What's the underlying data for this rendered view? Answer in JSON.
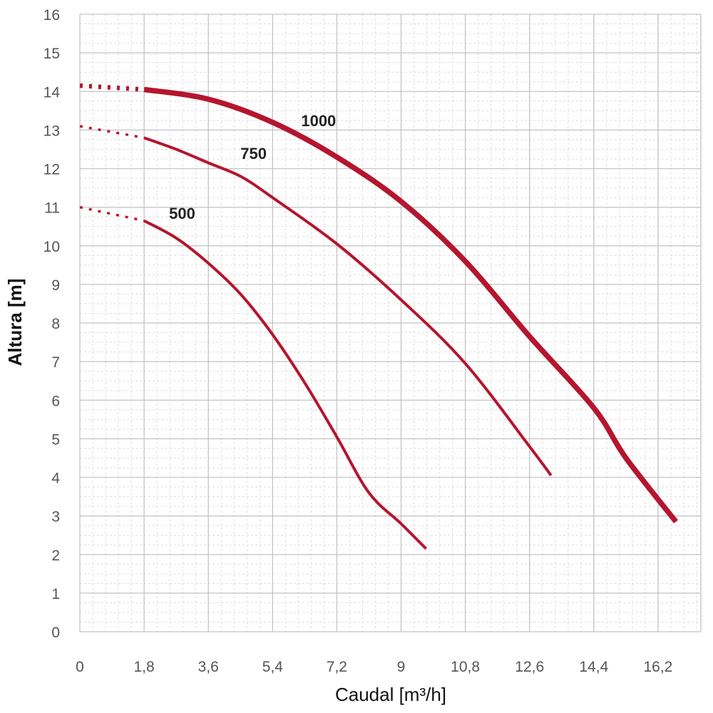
{
  "chart_data": {
    "type": "line",
    "title": "",
    "xlabel": "Caudal [m³/h]",
    "ylabel": "Altura [m]",
    "xlim": [
      0,
      17.4
    ],
    "ylim": [
      0,
      16
    ],
    "x_ticks": [
      "0",
      "1,8",
      "3,6",
      "5,4",
      "7,2",
      "9",
      "10,8",
      "12,6",
      "14,4",
      "16,2"
    ],
    "y_ticks": [
      "0",
      "1",
      "2",
      "3",
      "4",
      "5",
      "6",
      "7",
      "8",
      "9",
      "10",
      "11",
      "12",
      "13",
      "14",
      "15",
      "16"
    ],
    "grid": true,
    "legend": "none",
    "line_color": "#b5152e",
    "series": [
      {
        "name": "500",
        "dotted_extension": [
          [
            0,
            11.0
          ],
          [
            1.8,
            10.65
          ]
        ],
        "points": [
          [
            1.8,
            10.65
          ],
          [
            2.7,
            10.2
          ],
          [
            3.6,
            9.55
          ],
          [
            4.5,
            8.75
          ],
          [
            5.4,
            7.7
          ],
          [
            6.3,
            6.45
          ],
          [
            7.2,
            5.05
          ],
          [
            8.1,
            3.6
          ],
          [
            9.0,
            2.8
          ],
          [
            9.7,
            2.15
          ]
        ]
      },
      {
        "name": "750",
        "dotted_extension": [
          [
            0,
            13.1
          ],
          [
            1.8,
            12.8
          ]
        ],
        "points": [
          [
            1.8,
            12.8
          ],
          [
            2.7,
            12.5
          ],
          [
            3.6,
            12.15
          ],
          [
            4.5,
            11.8
          ],
          [
            5.4,
            11.25
          ],
          [
            7.2,
            10.05
          ],
          [
            9.0,
            8.6
          ],
          [
            10.8,
            6.95
          ],
          [
            12.6,
            4.8
          ],
          [
            13.2,
            4.05
          ]
        ]
      },
      {
        "name": "1000",
        "dotted_extension": [
          [
            0,
            14.15
          ],
          [
            1.8,
            14.05
          ]
        ],
        "points": [
          [
            1.8,
            14.05
          ],
          [
            3.6,
            13.8
          ],
          [
            5.4,
            13.2
          ],
          [
            7.2,
            12.3
          ],
          [
            9.0,
            11.15
          ],
          [
            10.8,
            9.6
          ],
          [
            12.6,
            7.65
          ],
          [
            14.4,
            5.8
          ],
          [
            15.3,
            4.5
          ],
          [
            16.7,
            2.85
          ]
        ]
      }
    ]
  }
}
